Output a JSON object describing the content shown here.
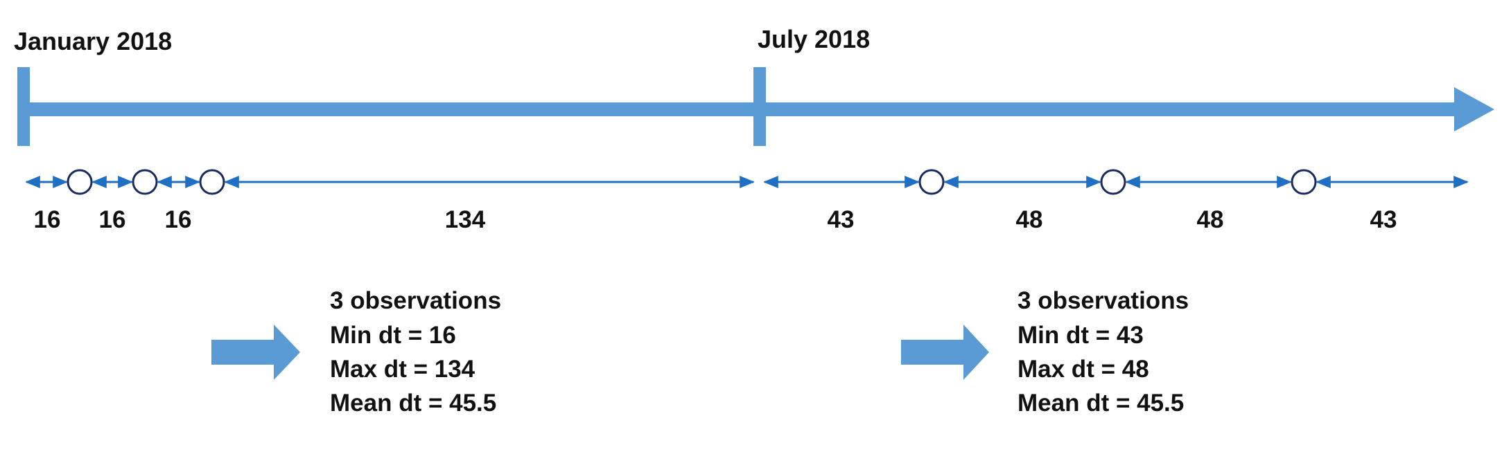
{
  "timeline": {
    "start_label": "January 2018",
    "mid_label": "July 2018",
    "color": "#5b9bd5"
  },
  "arrow_color": "#1f6fc4",
  "marker_stroke": "#1a2a5e",
  "periods": [
    {
      "intervals": [
        "16",
        "16",
        "16",
        "134"
      ],
      "summary": {
        "observations": "3 observations",
        "min": "Min dt = 16",
        "max": "Max dt = 134",
        "mean": "Mean dt = 45.5"
      }
    },
    {
      "intervals": [
        "43",
        "48",
        "48",
        "43"
      ],
      "summary": {
        "observations": "3 observations",
        "min": "Min dt = 43",
        "max": "Max dt = 48",
        "mean": "Mean dt = 45.5"
      }
    }
  ]
}
